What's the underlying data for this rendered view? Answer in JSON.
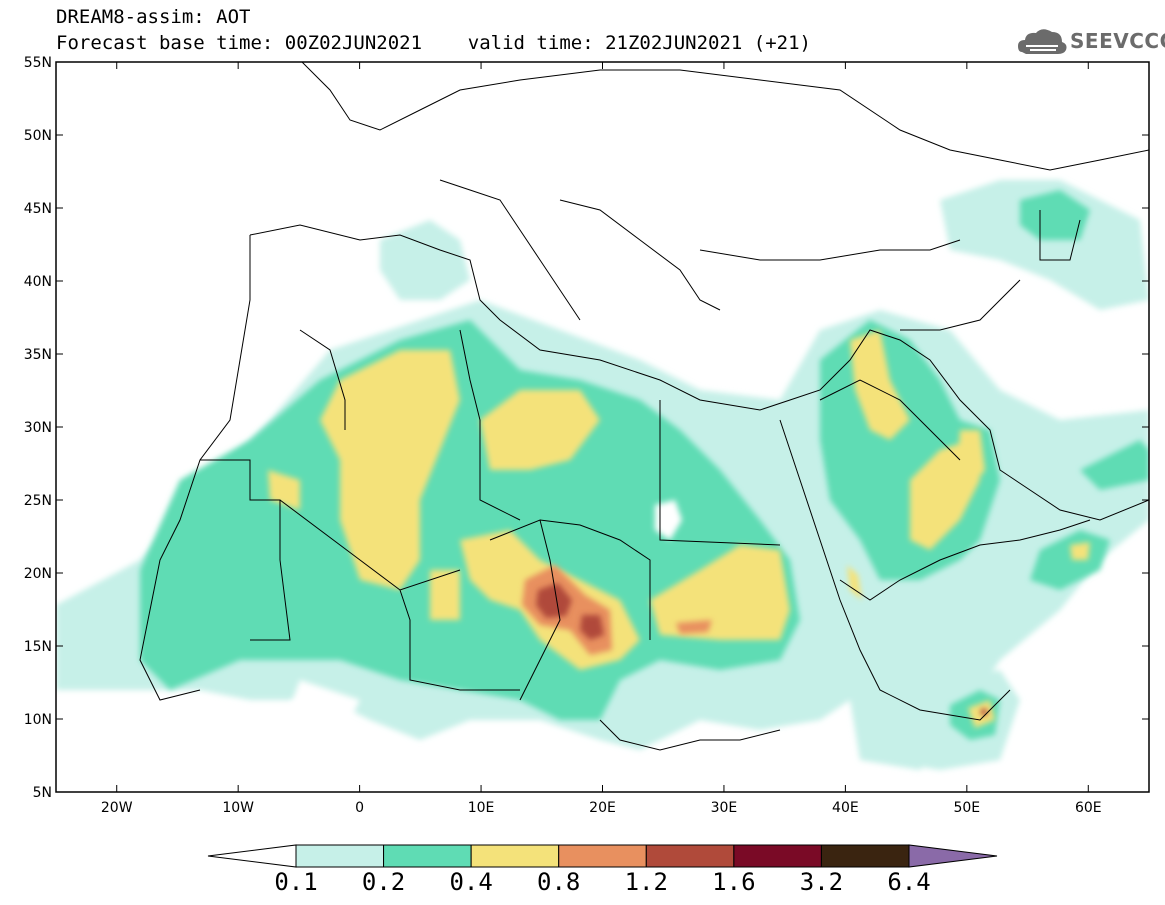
{
  "header": {
    "line1": "DREAM8-assim: AOT",
    "line2": "Forecast base time: 00Z02JUN2021    valid time: 21Z02JUN2021 (+21)"
  },
  "logo": {
    "text": "SEEVCCC",
    "icon": "cloud-icon"
  },
  "map": {
    "lon_range": [
      -25,
      65
    ],
    "lat_range": [
      5,
      55
    ],
    "lat_ticks": [
      "55N",
      "50N",
      "45N",
      "40N",
      "35N",
      "30N",
      "25N",
      "20N",
      "15N",
      "10N",
      "5N"
    ],
    "lon_ticks": [
      "20W",
      "10W",
      "0",
      "10E",
      "20E",
      "30E",
      "40E",
      "50E",
      "60E"
    ]
  },
  "colorbar": {
    "labels": [
      "0.1",
      "0.2",
      "0.4",
      "0.8",
      "1.2",
      "1.6",
      "3.2",
      "6.4"
    ],
    "colors": [
      "#ffffff",
      "#c6f0e8",
      "#5fdcb4",
      "#f4e27a",
      "#e8905f",
      "#b04a3a",
      "#7a0a26",
      "#3a2410",
      "#8a6aa8"
    ]
  }
}
